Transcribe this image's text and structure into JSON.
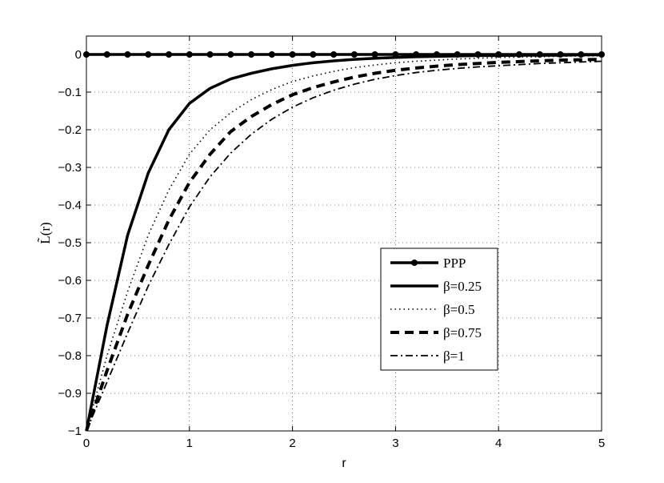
{
  "chart_data": {
    "type": "line",
    "xlabel": "r",
    "ylabel": "L̃(r)",
    "xlim": [
      0,
      5
    ],
    "ylim": [
      -1,
      0.05
    ],
    "grid": true,
    "legend_position": "lower-right",
    "x_ticks": [
      "0",
      "1",
      "2",
      "3",
      "4",
      "5"
    ],
    "y_ticks": [
      "0",
      "−0.1",
      "−0.2",
      "−0.3",
      "−0.4",
      "−0.5",
      "−0.6",
      "−0.7",
      "−0.8",
      "−0.9",
      "−1"
    ],
    "x": [
      0,
      0.2,
      0.4,
      0.6,
      0.8,
      1.0,
      1.2,
      1.4,
      1.6,
      1.8,
      2.0,
      2.2,
      2.4,
      2.6,
      2.8,
      3.0,
      3.2,
      3.4,
      3.6,
      3.8,
      4.0,
      4.2,
      4.4,
      4.6,
      4.8,
      5.0
    ],
    "series": [
      {
        "name": "PPP",
        "style": "solid-markers",
        "values": [
          0,
          0,
          0,
          0,
          0,
          0,
          0,
          0,
          0,
          0,
          0,
          0,
          0,
          0,
          0,
          0,
          0,
          0,
          0,
          0,
          0,
          0,
          0,
          0,
          0,
          0
        ]
      },
      {
        "name": "β=0.25",
        "style": "solid",
        "values": [
          -1,
          -0.72,
          -0.48,
          -0.315,
          -0.2,
          -0.13,
          -0.09,
          -0.065,
          -0.05,
          -0.038,
          -0.029,
          -0.022,
          -0.017,
          -0.013,
          -0.01,
          -0.008,
          -0.006,
          -0.005,
          -0.004,
          -0.003,
          -0.003,
          -0.002,
          -0.002,
          -0.002,
          -0.001,
          -0.001
        ]
      },
      {
        "name": "β=0.5",
        "style": "dotted",
        "values": [
          -1,
          -0.8,
          -0.63,
          -0.48,
          -0.36,
          -0.265,
          -0.2,
          -0.155,
          -0.12,
          -0.093,
          -0.072,
          -0.057,
          -0.045,
          -0.035,
          -0.028,
          -0.022,
          -0.018,
          -0.015,
          -0.012,
          -0.01,
          -0.008,
          -0.007,
          -0.006,
          -0.005,
          -0.004,
          -0.004
        ]
      },
      {
        "name": "β=0.75",
        "style": "dashed",
        "values": [
          -1,
          -0.84,
          -0.69,
          -0.56,
          -0.44,
          -0.34,
          -0.265,
          -0.205,
          -0.165,
          -0.133,
          -0.107,
          -0.088,
          -0.073,
          -0.06,
          -0.05,
          -0.042,
          -0.036,
          -0.031,
          -0.027,
          -0.024,
          -0.021,
          -0.019,
          -0.017,
          -0.015,
          -0.014,
          -0.013
        ]
      },
      {
        "name": "β=1",
        "style": "dashdot",
        "values": [
          -1,
          -0.87,
          -0.74,
          -0.615,
          -0.505,
          -0.405,
          -0.325,
          -0.262,
          -0.212,
          -0.172,
          -0.14,
          -0.115,
          -0.095,
          -0.079,
          -0.066,
          -0.056,
          -0.048,
          -0.042,
          -0.037,
          -0.033,
          -0.03,
          -0.027,
          -0.024,
          -0.022,
          -0.02,
          -0.018
        ]
      }
    ]
  }
}
